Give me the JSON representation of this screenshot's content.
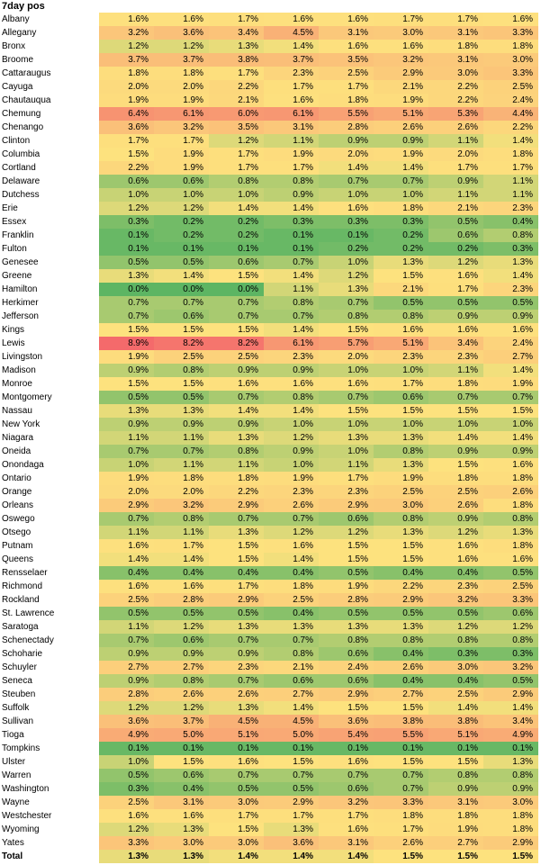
{
  "chart_data": {
    "type": "table",
    "title": "7day pos",
    "color_scale": {
      "low": "#5db563",
      "mid": "#fde27e",
      "high": "#f46a6b"
    },
    "rows": [
      {
        "county": "Albany",
        "values": [
          "1.6%",
          "1.6%",
          "1.7%",
          "1.6%",
          "1.6%",
          "1.7%",
          "1.7%",
          "1.6%"
        ]
      },
      {
        "county": "Allegany",
        "values": [
          "3.2%",
          "3.6%",
          "3.4%",
          "4.5%",
          "3.1%",
          "3.0%",
          "3.1%",
          "3.3%"
        ]
      },
      {
        "county": "Bronx",
        "values": [
          "1.2%",
          "1.2%",
          "1.3%",
          "1.4%",
          "1.6%",
          "1.6%",
          "1.8%",
          "1.8%"
        ]
      },
      {
        "county": "Broome",
        "values": [
          "3.7%",
          "3.7%",
          "3.8%",
          "3.7%",
          "3.5%",
          "3.2%",
          "3.1%",
          "3.0%"
        ]
      },
      {
        "county": "Cattaraugus",
        "values": [
          "1.8%",
          "1.8%",
          "1.7%",
          "2.3%",
          "2.5%",
          "2.9%",
          "3.0%",
          "3.3%"
        ]
      },
      {
        "county": "Cayuga",
        "values": [
          "2.0%",
          "2.0%",
          "2.2%",
          "1.7%",
          "1.7%",
          "2.1%",
          "2.2%",
          "2.5%"
        ]
      },
      {
        "county": "Chautauqua",
        "values": [
          "1.9%",
          "1.9%",
          "2.1%",
          "1.6%",
          "1.8%",
          "1.9%",
          "2.2%",
          "2.4%"
        ]
      },
      {
        "county": "Chemung",
        "values": [
          "6.4%",
          "6.1%",
          "6.0%",
          "6.1%",
          "5.5%",
          "5.1%",
          "5.3%",
          "4.4%"
        ]
      },
      {
        "county": "Chenango",
        "values": [
          "3.6%",
          "3.2%",
          "3.5%",
          "3.1%",
          "2.8%",
          "2.6%",
          "2.6%",
          "2.2%"
        ]
      },
      {
        "county": "Clinton",
        "values": [
          "1.7%",
          "1.7%",
          "1.2%",
          "1.1%",
          "0.9%",
          "0.9%",
          "1.1%",
          "1.4%"
        ]
      },
      {
        "county": "Columbia",
        "values": [
          "1.5%",
          "1.9%",
          "1.7%",
          "1.9%",
          "2.0%",
          "1.9%",
          "2.0%",
          "1.8%"
        ]
      },
      {
        "county": "Cortland",
        "values": [
          "2.2%",
          "1.9%",
          "1.7%",
          "1.7%",
          "1.4%",
          "1.4%",
          "1.7%",
          "1.7%"
        ]
      },
      {
        "county": "Delaware",
        "values": [
          "0.6%",
          "0.6%",
          "0.8%",
          "0.8%",
          "0.7%",
          "0.7%",
          "0.9%",
          "1.1%"
        ]
      },
      {
        "county": "Dutchess",
        "values": [
          "1.0%",
          "1.0%",
          "1.0%",
          "0.9%",
          "1.0%",
          "1.0%",
          "1.1%",
          "1.1%"
        ]
      },
      {
        "county": "Erie",
        "values": [
          "1.2%",
          "1.2%",
          "1.4%",
          "1.4%",
          "1.6%",
          "1.8%",
          "2.1%",
          "2.3%"
        ]
      },
      {
        "county": "Essex",
        "values": [
          "0.3%",
          "0.2%",
          "0.2%",
          "0.3%",
          "0.3%",
          "0.3%",
          "0.5%",
          "0.4%"
        ]
      },
      {
        "county": "Franklin",
        "values": [
          "0.1%",
          "0.2%",
          "0.2%",
          "0.1%",
          "0.1%",
          "0.2%",
          "0.6%",
          "0.8%"
        ]
      },
      {
        "county": "Fulton",
        "values": [
          "0.1%",
          "0.1%",
          "0.1%",
          "0.1%",
          "0.2%",
          "0.2%",
          "0.2%",
          "0.3%"
        ]
      },
      {
        "county": "Genesee",
        "values": [
          "0.5%",
          "0.5%",
          "0.6%",
          "0.7%",
          "1.0%",
          "1.3%",
          "1.2%",
          "1.3%"
        ]
      },
      {
        "county": "Greene",
        "values": [
          "1.3%",
          "1.4%",
          "1.5%",
          "1.4%",
          "1.2%",
          "1.5%",
          "1.6%",
          "1.4%"
        ]
      },
      {
        "county": "Hamilton",
        "values": [
          "0.0%",
          "0.0%",
          "0.0%",
          "1.1%",
          "1.3%",
          "2.1%",
          "1.7%",
          "2.3%"
        ]
      },
      {
        "county": "Herkimer",
        "values": [
          "0.7%",
          "0.7%",
          "0.7%",
          "0.8%",
          "0.7%",
          "0.5%",
          "0.5%",
          "0.5%"
        ]
      },
      {
        "county": "Jefferson",
        "values": [
          "0.7%",
          "0.6%",
          "0.7%",
          "0.7%",
          "0.8%",
          "0.8%",
          "0.9%",
          "0.9%"
        ]
      },
      {
        "county": "Kings",
        "values": [
          "1.5%",
          "1.5%",
          "1.5%",
          "1.4%",
          "1.5%",
          "1.6%",
          "1.6%",
          "1.6%"
        ]
      },
      {
        "county": "Lewis",
        "values": [
          "8.9%",
          "8.2%",
          "8.2%",
          "6.1%",
          "5.7%",
          "5.1%",
          "3.4%",
          "2.4%"
        ]
      },
      {
        "county": "Livingston",
        "values": [
          "1.9%",
          "2.5%",
          "2.5%",
          "2.3%",
          "2.0%",
          "2.3%",
          "2.3%",
          "2.7%"
        ]
      },
      {
        "county": "Madison",
        "values": [
          "0.9%",
          "0.8%",
          "0.9%",
          "0.9%",
          "1.0%",
          "1.0%",
          "1.1%",
          "1.4%"
        ]
      },
      {
        "county": "Monroe",
        "values": [
          "1.5%",
          "1.5%",
          "1.6%",
          "1.6%",
          "1.6%",
          "1.7%",
          "1.8%",
          "1.9%"
        ]
      },
      {
        "county": "Montgomery",
        "values": [
          "0.5%",
          "0.5%",
          "0.7%",
          "0.8%",
          "0.7%",
          "0.6%",
          "0.7%",
          "0.7%"
        ]
      },
      {
        "county": "Nassau",
        "values": [
          "1.3%",
          "1.3%",
          "1.4%",
          "1.4%",
          "1.5%",
          "1.5%",
          "1.5%",
          "1.5%"
        ]
      },
      {
        "county": "New York",
        "values": [
          "0.9%",
          "0.9%",
          "0.9%",
          "1.0%",
          "1.0%",
          "1.0%",
          "1.0%",
          "1.0%"
        ]
      },
      {
        "county": "Niagara",
        "values": [
          "1.1%",
          "1.1%",
          "1.3%",
          "1.2%",
          "1.3%",
          "1.3%",
          "1.4%",
          "1.4%"
        ]
      },
      {
        "county": "Oneida",
        "values": [
          "0.7%",
          "0.7%",
          "0.8%",
          "0.9%",
          "1.0%",
          "0.8%",
          "0.9%",
          "0.9%"
        ]
      },
      {
        "county": "Onondaga",
        "values": [
          "1.0%",
          "1.1%",
          "1.1%",
          "1.0%",
          "1.1%",
          "1.3%",
          "1.5%",
          "1.6%"
        ]
      },
      {
        "county": "Ontario",
        "values": [
          "1.9%",
          "1.8%",
          "1.8%",
          "1.9%",
          "1.7%",
          "1.9%",
          "1.8%",
          "1.8%"
        ]
      },
      {
        "county": "Orange",
        "values": [
          "2.0%",
          "2.0%",
          "2.2%",
          "2.3%",
          "2.3%",
          "2.5%",
          "2.5%",
          "2.6%"
        ]
      },
      {
        "county": "Orleans",
        "values": [
          "2.9%",
          "3.2%",
          "2.9%",
          "2.6%",
          "2.9%",
          "3.0%",
          "2.6%",
          "1.8%"
        ]
      },
      {
        "county": "Oswego",
        "values": [
          "0.7%",
          "0.8%",
          "0.7%",
          "0.7%",
          "0.6%",
          "0.8%",
          "0.9%",
          "0.8%"
        ]
      },
      {
        "county": "Otsego",
        "values": [
          "1.1%",
          "1.1%",
          "1.3%",
          "1.2%",
          "1.2%",
          "1.3%",
          "1.2%",
          "1.3%"
        ]
      },
      {
        "county": "Putnam",
        "values": [
          "1.6%",
          "1.7%",
          "1.5%",
          "1.6%",
          "1.5%",
          "1.5%",
          "1.6%",
          "1.8%"
        ]
      },
      {
        "county": "Queens",
        "values": [
          "1.4%",
          "1.4%",
          "1.5%",
          "1.4%",
          "1.5%",
          "1.5%",
          "1.6%",
          "1.6%"
        ]
      },
      {
        "county": "Rensselaer",
        "values": [
          "0.4%",
          "0.4%",
          "0.4%",
          "0.4%",
          "0.5%",
          "0.4%",
          "0.4%",
          "0.5%"
        ]
      },
      {
        "county": "Richmond",
        "values": [
          "1.6%",
          "1.6%",
          "1.7%",
          "1.8%",
          "1.9%",
          "2.2%",
          "2.3%",
          "2.5%"
        ]
      },
      {
        "county": "Rockland",
        "values": [
          "2.5%",
          "2.8%",
          "2.9%",
          "2.5%",
          "2.8%",
          "2.9%",
          "3.2%",
          "3.3%"
        ]
      },
      {
        "county": "St. Lawrence",
        "values": [
          "0.5%",
          "0.5%",
          "0.5%",
          "0.4%",
          "0.5%",
          "0.5%",
          "0.5%",
          "0.6%"
        ]
      },
      {
        "county": "Saratoga",
        "values": [
          "1.1%",
          "1.2%",
          "1.3%",
          "1.3%",
          "1.3%",
          "1.3%",
          "1.2%",
          "1.2%"
        ]
      },
      {
        "county": "Schenectady",
        "values": [
          "0.7%",
          "0.6%",
          "0.7%",
          "0.7%",
          "0.8%",
          "0.8%",
          "0.8%",
          "0.8%"
        ]
      },
      {
        "county": "Schoharie",
        "values": [
          "0.9%",
          "0.9%",
          "0.9%",
          "0.8%",
          "0.6%",
          "0.4%",
          "0.3%",
          "0.3%"
        ]
      },
      {
        "county": "Schuyler",
        "values": [
          "2.7%",
          "2.7%",
          "2.3%",
          "2.1%",
          "2.4%",
          "2.6%",
          "3.0%",
          "3.2%"
        ]
      },
      {
        "county": "Seneca",
        "values": [
          "0.9%",
          "0.8%",
          "0.7%",
          "0.6%",
          "0.6%",
          "0.4%",
          "0.4%",
          "0.5%"
        ]
      },
      {
        "county": "Steuben",
        "values": [
          "2.8%",
          "2.6%",
          "2.6%",
          "2.7%",
          "2.9%",
          "2.7%",
          "2.5%",
          "2.9%"
        ]
      },
      {
        "county": "Suffolk",
        "values": [
          "1.2%",
          "1.2%",
          "1.3%",
          "1.4%",
          "1.5%",
          "1.5%",
          "1.4%",
          "1.4%"
        ]
      },
      {
        "county": "Sullivan",
        "values": [
          "3.6%",
          "3.7%",
          "4.5%",
          "4.5%",
          "3.6%",
          "3.8%",
          "3.8%",
          "3.4%"
        ]
      },
      {
        "county": "Tioga",
        "values": [
          "4.9%",
          "5.0%",
          "5.1%",
          "5.0%",
          "5.4%",
          "5.5%",
          "5.1%",
          "4.9%"
        ]
      },
      {
        "county": "Tompkins",
        "values": [
          "0.1%",
          "0.1%",
          "0.1%",
          "0.1%",
          "0.1%",
          "0.1%",
          "0.1%",
          "0.1%"
        ]
      },
      {
        "county": "Ulster",
        "values": [
          "1.0%",
          "1.5%",
          "1.6%",
          "1.5%",
          "1.6%",
          "1.5%",
          "1.5%",
          "1.3%"
        ]
      },
      {
        "county": "Warren",
        "values": [
          "0.5%",
          "0.6%",
          "0.7%",
          "0.7%",
          "0.7%",
          "0.7%",
          "0.8%",
          "0.8%"
        ]
      },
      {
        "county": "Washington",
        "values": [
          "0.3%",
          "0.4%",
          "0.5%",
          "0.5%",
          "0.6%",
          "0.7%",
          "0.9%",
          "0.9%"
        ]
      },
      {
        "county": "Wayne",
        "values": [
          "2.5%",
          "3.1%",
          "3.0%",
          "2.9%",
          "3.2%",
          "3.3%",
          "3.1%",
          "3.0%"
        ]
      },
      {
        "county": "Westchester",
        "values": [
          "1.6%",
          "1.6%",
          "1.7%",
          "1.7%",
          "1.7%",
          "1.8%",
          "1.8%",
          "1.8%"
        ]
      },
      {
        "county": "Wyoming",
        "values": [
          "1.2%",
          "1.3%",
          "1.5%",
          "1.3%",
          "1.6%",
          "1.7%",
          "1.9%",
          "1.8%"
        ]
      },
      {
        "county": "Yates",
        "values": [
          "3.3%",
          "3.0%",
          "3.0%",
          "3.6%",
          "3.1%",
          "2.6%",
          "2.7%",
          "2.9%"
        ]
      }
    ],
    "total": {
      "label": "Total",
      "values": [
        "1.3%",
        "1.3%",
        "1.4%",
        "1.4%",
        "1.4%",
        "1.5%",
        "1.5%",
        "1.5%"
      ]
    }
  }
}
